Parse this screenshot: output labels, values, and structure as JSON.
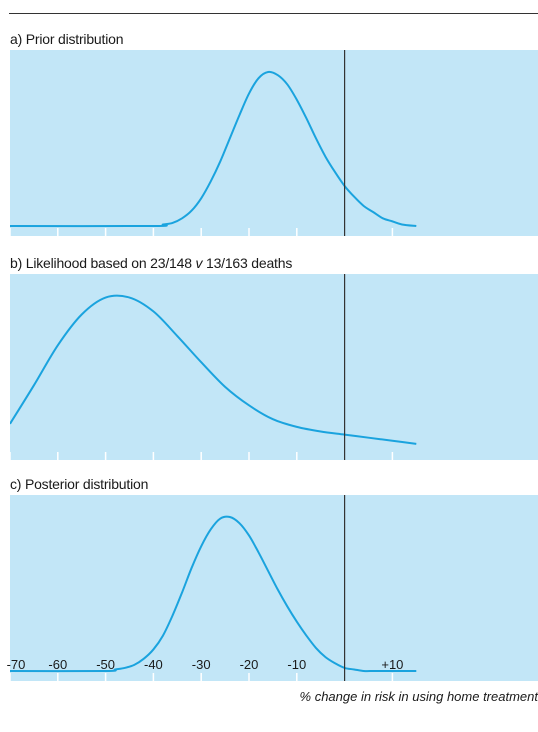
{
  "chart_data": {
    "type": "line",
    "xlabel": "% change in risk in using home treatment",
    "xlim": [
      -70,
      15
    ],
    "reference_line_x": 0,
    "x_ticks": [
      "-70",
      "-60",
      "-50",
      "-40",
      "-30",
      "-20",
      "-10",
      "+10"
    ],
    "x_tick_values": [
      -70,
      -60,
      -50,
      -40,
      -30,
      -20,
      -10,
      10
    ],
    "panels": [
      {
        "title_parts": [
          "a) Prior distribution"
        ],
        "x": [
          -70,
          -40,
          -38,
          -36,
          -34,
          -32,
          -30,
          -28,
          -26,
          -24,
          -22,
          -20,
          -18,
          -16,
          -14,
          -12,
          -10,
          -8,
          -6,
          -4,
          -2,
          0,
          2,
          4,
          6,
          8,
          10,
          12,
          15
        ],
        "density": [
          0.0,
          0.0,
          0.01,
          0.02,
          0.05,
          0.1,
          0.18,
          0.29,
          0.42,
          0.57,
          0.72,
          0.86,
          0.96,
          1.0,
          0.98,
          0.92,
          0.82,
          0.7,
          0.57,
          0.45,
          0.35,
          0.26,
          0.19,
          0.13,
          0.09,
          0.05,
          0.03,
          0.01,
          0.0
        ]
      },
      {
        "title_parts": [
          "b) Likelihood based on 23/148 ",
          "v",
          " 13/163 deaths"
        ],
        "x": [
          -70,
          -65,
          -60,
          -55,
          -50,
          -45,
          -40,
          -35,
          -30,
          -25,
          -20,
          -15,
          -10,
          -5,
          0,
          5,
          10,
          15
        ],
        "density": [
          0.17,
          0.42,
          0.68,
          0.88,
          0.99,
          0.99,
          0.9,
          0.74,
          0.57,
          0.41,
          0.29,
          0.2,
          0.15,
          0.12,
          0.1,
          0.08,
          0.06,
          0.04
        ]
      },
      {
        "title_parts": [
          "c) Posterior distribution"
        ],
        "x": [
          -70,
          -50,
          -48,
          -46,
          -44,
          -42,
          -40,
          -38,
          -36,
          -34,
          -32,
          -30,
          -28,
          -26,
          -24,
          -22,
          -20,
          -18,
          -16,
          -14,
          -12,
          -10,
          -8,
          -6,
          -4,
          -2,
          0,
          2,
          4,
          6,
          8,
          10,
          15
        ],
        "density": [
          0.0,
          0.0,
          0.01,
          0.02,
          0.04,
          0.08,
          0.14,
          0.23,
          0.36,
          0.51,
          0.67,
          0.81,
          0.92,
          0.99,
          1.0,
          0.96,
          0.88,
          0.77,
          0.65,
          0.53,
          0.42,
          0.32,
          0.23,
          0.15,
          0.09,
          0.05,
          0.02,
          0.01,
          0.0,
          0.0,
          0.0,
          0.0,
          0.0
        ]
      }
    ]
  },
  "colors": {
    "panel_fill": "#c2e6f7",
    "curve": "#1aa3de",
    "tick": "#ffffff",
    "reference_line": "#333333",
    "rule": "#333333"
  }
}
